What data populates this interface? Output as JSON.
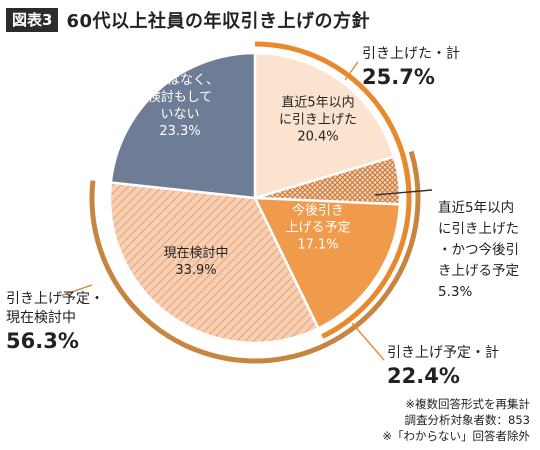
{
  "header": {
    "badge": "図表3",
    "title": "60代以上社員の年収引き上げの方針"
  },
  "chart_data": {
    "type": "pie",
    "title": "60代以上社員の年収引き上げの方針",
    "slices": [
      {
        "label": [
          "直近5年以内",
          "に引き上げた"
        ],
        "value": 20.4,
        "value_text": "20.4%",
        "color": "#fbe3cf"
      },
      {
        "label": [
          "直近5年以内",
          "に引き上げた",
          "・かつ今後引",
          "き上げる予定"
        ],
        "value": 5.3,
        "value_text": "5.3%",
        "color": "#c8773a"
      },
      {
        "label": [
          "今後引き",
          "上げる予定"
        ],
        "value": 17.1,
        "value_text": "17.1%",
        "color": "#f09a4b"
      },
      {
        "label": [
          "現在検討中"
        ],
        "value": 33.9,
        "value_text": "33.9%",
        "color": "#f3c4a6"
      },
      {
        "label": [
          "予定はなく、",
          "検討もして",
          "いない"
        ],
        "value": 23.3,
        "value_text": "23.3%",
        "color": "#6e7d95"
      }
    ],
    "groups": [
      {
        "label": "引き上げた・計",
        "value": "25.7%",
        "color": "#e8892c"
      },
      {
        "label": "引き上げ予定・計",
        "value": "22.4%",
        "color": "#e8892c"
      },
      {
        "label": [
          "引き上げ予定・",
          "現在検討中"
        ],
        "value": "56.3%",
        "color": "#c8853f"
      }
    ]
  },
  "footnotes": [
    "※複数回答形式を再集計",
    "調査分析対象者数：853",
    "※「わからない」回答者除外"
  ]
}
